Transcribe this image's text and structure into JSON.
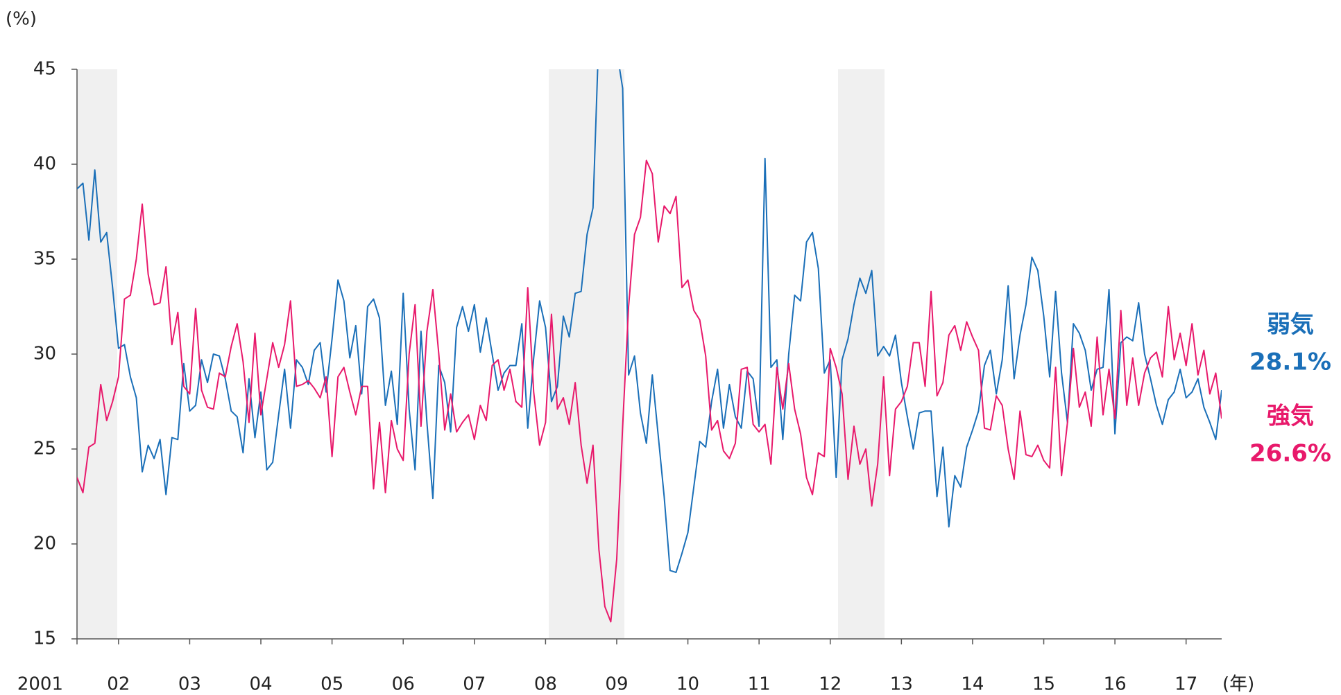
{
  "chart_data": {
    "type": "line",
    "y_unit": "(%)",
    "x_unit": "(年)",
    "categories": [
      "2001",
      null,
      null,
      null,
      null,
      null,
      null,
      "02",
      null,
      null,
      null,
      null,
      null,
      null,
      null,
      null,
      null,
      null,
      null,
      "03",
      null,
      null,
      null,
      null,
      null,
      null,
      null,
      null,
      null,
      null,
      null,
      "04",
      null,
      null,
      null,
      null,
      null,
      null,
      null,
      null,
      null,
      null,
      null,
      "05",
      null,
      null,
      null,
      null,
      null,
      null,
      null,
      null,
      null,
      null,
      null,
      "06",
      null,
      null,
      null,
      null,
      null,
      null,
      null,
      null,
      null,
      null,
      null,
      "07",
      null,
      null,
      null,
      null,
      null,
      null,
      null,
      null,
      null,
      null,
      null,
      "08",
      null,
      null,
      null,
      null,
      null,
      null,
      null,
      null,
      null,
      null,
      null,
      "09",
      null,
      null,
      null,
      null,
      null,
      null,
      null,
      null,
      null,
      null,
      null,
      "10",
      null,
      null,
      null,
      null,
      null,
      null,
      null,
      null,
      null,
      null,
      null,
      "11",
      null,
      null,
      null,
      null,
      null,
      null,
      null,
      null,
      null,
      null,
      null,
      "12",
      null,
      null,
      null,
      null,
      null,
      null,
      null,
      null,
      null,
      null,
      null,
      "13",
      null,
      null,
      null,
      null,
      null,
      null,
      null,
      null,
      null,
      null,
      null,
      "14",
      null,
      null,
      null,
      null,
      null,
      null,
      null,
      null,
      null,
      null,
      null,
      "15",
      null,
      null,
      null,
      null,
      null,
      null,
      null,
      null,
      null,
      null,
      null,
      "16",
      null,
      null,
      null,
      null,
      null,
      null,
      null,
      null,
      null,
      null,
      null,
      "17",
      null,
      null,
      null,
      null,
      null,
      null
    ],
    "series": [
      {
        "name": "弱気",
        "color": "#1a6fb8",
        "values": [
          38.7,
          39.0,
          36.0,
          39.7,
          35.9,
          36.4,
          33.5,
          30.3,
          30.5,
          28.8,
          27.7,
          23.8,
          25.2,
          24.5,
          25.5,
          22.6,
          25.6,
          25.5,
          29.5,
          27.0,
          27.3,
          29.7,
          28.5,
          30.0,
          29.9,
          28.7,
          27.0,
          26.7,
          24.8,
          28.7,
          25.6,
          28.0,
          23.9,
          24.3,
          26.8,
          29.2,
          26.1,
          29.7,
          29.3,
          28.4,
          30.2,
          30.6,
          28.0,
          30.8,
          33.9,
          32.8,
          29.8,
          31.5,
          27.9,
          32.5,
          32.9,
          31.9,
          27.3,
          29.1,
          26.3,
          33.2,
          27.1,
          23.9,
          31.2,
          26.4,
          22.4,
          29.4,
          28.5,
          25.9,
          31.4,
          32.5,
          31.2,
          32.6,
          30.1,
          31.9,
          30.0,
          28.1,
          29.0,
          29.4,
          29.4,
          31.6,
          26.1,
          29.8,
          32.8,
          31.4,
          27.5,
          28.3,
          32.0,
          30.9,
          33.2,
          33.3,
          36.3,
          37.7,
          47.0,
          48.5,
          47.5,
          46.0,
          44.0,
          28.9,
          29.9,
          26.9,
          25.3,
          28.9,
          25.7,
          22.5,
          18.6,
          18.5,
          19.5,
          20.6,
          23.0,
          25.4,
          25.1,
          27.5,
          29.2,
          26.1,
          28.4,
          26.7,
          26.1,
          29.1,
          28.7,
          26.2,
          40.3,
          29.3,
          29.7,
          25.5,
          30.0,
          33.1,
          32.8,
          35.9,
          36.4,
          34.5,
          29.0,
          29.7,
          23.5,
          29.7,
          30.8,
          32.6,
          34.0,
          33.2,
          34.4,
          29.9,
          30.4,
          29.9,
          31.0,
          28.5,
          26.7,
          25.0,
          26.9,
          27.0,
          27.0,
          22.5,
          25.1,
          20.9,
          23.6,
          23.0,
          25.1,
          26.0,
          27.0,
          29.4,
          30.2,
          27.9,
          29.7,
          33.6,
          28.7,
          31.0,
          32.6,
          35.1,
          34.4,
          32.0,
          28.8,
          33.3,
          29.0,
          26.4,
          31.6,
          31.1,
          30.2,
          28.1,
          29.2,
          29.3,
          33.4,
          25.8,
          30.6,
          30.9,
          30.7,
          32.7,
          30.0,
          28.7,
          27.3,
          26.3,
          27.6,
          28.0,
          29.2,
          27.7,
          28.0,
          28.7,
          27.2,
          26.4,
          25.5,
          28.1
        ]
      },
      {
        "name": "強気",
        "color": "#e8196b",
        "values": [
          23.5,
          22.7,
          25.1,
          25.3,
          28.4,
          26.5,
          27.5,
          28.8,
          32.9,
          33.1,
          35.0,
          37.9,
          34.2,
          32.6,
          32.7,
          34.6,
          30.5,
          32.2,
          28.3,
          27.9,
          32.4,
          28.1,
          27.2,
          27.1,
          29.0,
          28.8,
          30.4,
          31.6,
          29.6,
          26.4,
          31.1,
          26.8,
          28.7,
          30.6,
          29.3,
          30.5,
          32.8,
          28.3,
          28.4,
          28.6,
          28.2,
          27.7,
          28.8,
          24.6,
          28.8,
          29.3,
          28.0,
          26.8,
          28.3,
          28.3,
          22.9,
          26.4,
          22.7,
          26.5,
          25.0,
          24.4,
          30.0,
          32.6,
          26.2,
          31.2,
          33.4,
          30.0,
          26.0,
          27.9,
          25.9,
          26.4,
          26.8,
          25.5,
          27.3,
          26.5,
          29.4,
          29.7,
          28.1,
          29.2,
          27.5,
          27.2,
          33.5,
          28.0,
          25.2,
          26.4,
          32.1,
          27.1,
          27.7,
          26.3,
          28.5,
          25.2,
          23.2,
          25.2,
          19.7,
          16.7,
          15.9,
          19.2,
          26.2,
          32.5,
          36.3,
          37.2,
          40.2,
          39.5,
          35.9,
          37.8,
          37.4,
          38.3,
          33.5,
          33.9,
          32.3,
          31.8,
          29.9,
          26.0,
          26.5,
          24.9,
          24.5,
          25.3,
          29.2,
          29.3,
          26.3,
          25.9,
          26.3,
          24.2,
          29.3,
          27.1,
          29.5,
          27.1,
          25.8,
          23.5,
          22.6,
          24.8,
          24.6,
          30.3,
          29.3,
          27.9,
          23.4,
          26.2,
          24.2,
          25.0,
          22.0,
          24.2,
          28.8,
          23.6,
          27.1,
          27.5,
          28.3,
          30.6,
          30.6,
          28.3,
          33.3,
          27.8,
          28.5,
          31.0,
          31.5,
          30.2,
          31.7,
          30.9,
          30.2,
          26.1,
          26.0,
          27.8,
          27.3,
          25.0,
          23.4,
          27.0,
          24.7,
          24.6,
          25.2,
          24.4,
          24.0,
          29.3,
          23.6,
          26.4,
          30.3,
          27.2,
          28.0,
          26.2,
          30.9,
          26.8,
          29.2,
          26.6,
          32.3,
          27.3,
          29.8,
          27.3,
          29.0,
          29.8,
          30.1,
          28.8,
          32.5,
          29.7,
          31.1,
          29.4,
          31.6,
          28.9,
          30.2,
          27.9,
          29.0,
          26.6
        ]
      }
    ],
    "annotations": [
      "弱気",
      "28.1%",
      "強気",
      "26.6%"
    ],
    "ylim": [
      15,
      45
    ],
    "yticks": [
      15,
      20,
      25,
      30,
      35,
      40,
      45
    ],
    "grid": false
  }
}
